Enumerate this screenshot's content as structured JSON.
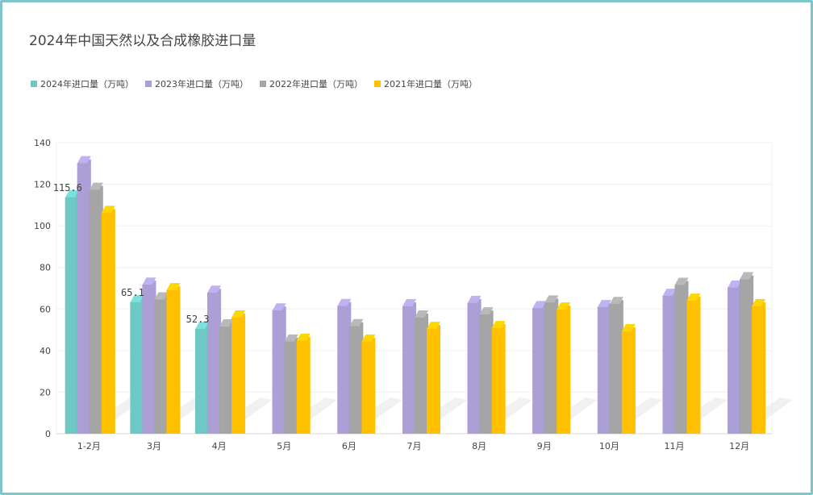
{
  "chart_data": {
    "type": "bar",
    "title": "2024年中国天然以及合成橡胶进口量",
    "categories": [
      "1-2月",
      "3月",
      "4月",
      "5月",
      "6月",
      "7月",
      "8月",
      "9月",
      "10月",
      "11月",
      "12月"
    ],
    "ylim": [
      0,
      140
    ],
    "yticks": [
      0,
      20,
      40,
      60,
      80,
      100,
      120,
      140
    ],
    "legend_position": "top-left",
    "grid": true,
    "series": [
      {
        "name": "2024年进口量（万吨）",
        "color": "#6ec9c4",
        "values": [
          115.6,
          65.1,
          52.3,
          null,
          null,
          null,
          null,
          null,
          null,
          null,
          null
        ],
        "labels": [
          "115.6",
          "65.1",
          "52.3"
        ]
      },
      {
        "name": "2023年进口量（万吨）",
        "color": "#ab9fd6",
        "values": [
          132,
          73.6,
          69.7,
          61.2,
          63.3,
          63.2,
          64.8,
          62.3,
          62.8,
          68.2,
          72.2
        ]
      },
      {
        "name": "2022年进口量（万吨）",
        "color": "#a5a5a5",
        "values": [
          119.2,
          66.5,
          53.5,
          46.2,
          53.6,
          57.8,
          59.3,
          65,
          64.3,
          73.5,
          76.2
        ]
      },
      {
        "name": "2021年进口量（万吨）",
        "color": "#ffc000",
        "values": [
          108.1,
          70.9,
          57.8,
          46.6,
          46.2,
          52.3,
          52.7,
          61.6,
          51.2,
          65.9,
          63.2
        ]
      }
    ]
  }
}
